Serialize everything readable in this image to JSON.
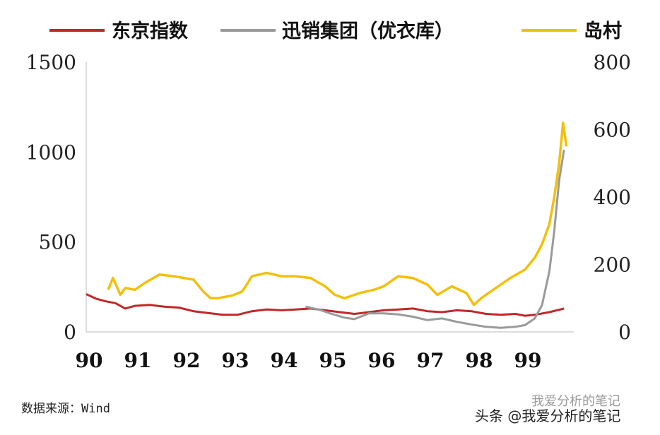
{
  "chart_data": {
    "type": "line",
    "legend_position": "top",
    "grid": false,
    "x_ticks": [
      "90",
      "91",
      "92",
      "93",
      "94",
      "95",
      "96",
      "97",
      "98",
      "99"
    ],
    "xlim": [
      1990,
      2000
    ],
    "y_left": {
      "ticks": [
        "1500",
        "1000",
        "500",
        "0"
      ],
      "ylim": [
        0,
        1500
      ]
    },
    "y_right": {
      "ticks": [
        "800",
        "600",
        "400",
        "200",
        "0"
      ],
      "ylim": [
        0,
        800
      ]
    },
    "series": [
      {
        "name": "东京指数",
        "color": "#c0282a",
        "axis": "left",
        "x": [
          1990.0,
          1990.2,
          1990.4,
          1990.6,
          1990.8,
          1991.0,
          1991.3,
          1991.6,
          1991.9,
          1992.2,
          1992.5,
          1992.8,
          1993.1,
          1993.4,
          1993.7,
          1994.0,
          1994.3,
          1994.6,
          1994.9,
          1995.2,
          1995.5,
          1995.8,
          1996.1,
          1996.4,
          1996.7,
          1997.0,
          1997.3,
          1997.6,
          1997.9,
          1998.2,
          1998.5,
          1998.8,
          1999.0,
          1999.2,
          1999.5,
          1999.8
        ],
        "values": [
          210,
          185,
          170,
          160,
          130,
          145,
          150,
          140,
          135,
          115,
          105,
          95,
          95,
          115,
          125,
          120,
          125,
          130,
          120,
          110,
          100,
          110,
          120,
          125,
          130,
          115,
          110,
          120,
          115,
          100,
          95,
          100,
          90,
          95,
          110,
          130
        ]
      },
      {
        "name": "迅销集团（优衣库）",
        "color": "#9a9a9a",
        "axis": "right",
        "x": [
          1994.5,
          1994.8,
          1995.0,
          1995.3,
          1995.5,
          1995.8,
          1996.1,
          1996.4,
          1996.7,
          1997.0,
          1997.3,
          1997.6,
          1997.9,
          1998.2,
          1998.5,
          1998.8,
          1999.0,
          1999.2,
          1999.35,
          1999.5,
          1999.6,
          1999.7,
          1999.8
        ],
        "values": [
          75,
          65,
          55,
          42,
          38,
          55,
          55,
          52,
          45,
          35,
          40,
          30,
          22,
          15,
          12,
          15,
          20,
          40,
          80,
          180,
          300,
          450,
          540
        ]
      },
      {
        "name": "岛村",
        "color": "#f2c00a",
        "axis": "right",
        "x": [
          1990.45,
          1990.55,
          1990.7,
          1990.8,
          1991.0,
          1991.2,
          1991.5,
          1991.8,
          1992.0,
          1992.2,
          1992.4,
          1992.55,
          1992.7,
          1993.0,
          1993.2,
          1993.4,
          1993.7,
          1994.0,
          1994.3,
          1994.6,
          1994.9,
          1995.1,
          1995.3,
          1995.6,
          1995.9,
          1996.1,
          1996.4,
          1996.7,
          1997.0,
          1997.2,
          1997.5,
          1997.8,
          1997.95,
          1998.1,
          1998.4,
          1998.7,
          1999.0,
          1999.2,
          1999.35,
          1999.5,
          1999.6,
          1999.7,
          1999.78,
          1999.85
        ],
        "values": [
          125,
          160,
          110,
          130,
          125,
          145,
          170,
          165,
          160,
          155,
          120,
          100,
          100,
          108,
          120,
          165,
          175,
          165,
          165,
          160,
          135,
          110,
          100,
          115,
          125,
          135,
          165,
          160,
          140,
          110,
          135,
          115,
          80,
          100,
          130,
          160,
          185,
          220,
          260,
          320,
          400,
          500,
          620,
          550
        ]
      }
    ],
    "source_note": "数据来源：Wind"
  },
  "watermark": {
    "faint_text": "我爱分析的笔记",
    "main_text": "头条 @我爱分析的笔记"
  }
}
